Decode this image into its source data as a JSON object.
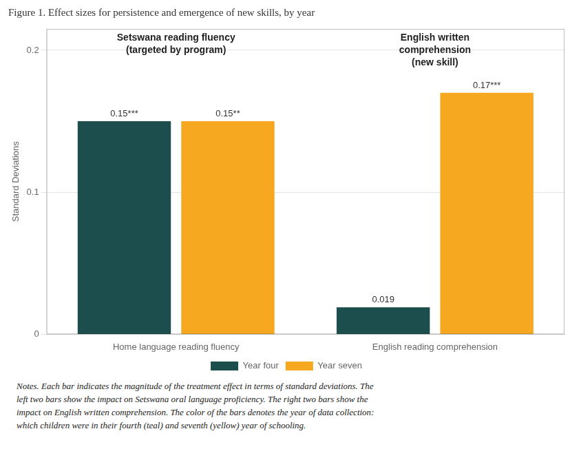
{
  "chart_data": {
    "type": "bar",
    "title": "Figure 1. Effect sizes for persistence and emergence of new skills, by year",
    "categories": [
      "Home language reading fluency",
      "English reading comprehension"
    ],
    "series": [
      {
        "name": "Year four",
        "color": "#1d4e4e",
        "values": [
          0.15,
          0.019
        ],
        "value_labels": [
          "0.15***",
          "0.019"
        ]
      },
      {
        "name": "Year seven",
        "color": "#f5a820",
        "values": [
          0.15,
          0.17
        ],
        "value_labels": [
          "0.15**",
          "0.17***"
        ]
      }
    ],
    "ylabel": "Standard Deviations",
    "ylim": [
      0,
      0.215
    ],
    "yticks": [
      0,
      0.1,
      0.2
    ],
    "grid": true,
    "legend": "bottom",
    "data_labels": true,
    "annotations": [
      {
        "text": "Setswana reading fluency\n(targeted by program)",
        "category": "Home language reading fluency"
      },
      {
        "text": "English written\ncomprehension\n(new skill)",
        "category": "English reading comprehension"
      }
    ],
    "notes": "Notes.  Each bar indicates the magnitude of the treatment effect in terms of standard deviations. The\nleft two bars show the impact on Setswana oral language proficiency. The right two bars show the\nimpact on English written comprehension. The color of the bars denotes the year of data collection:\nwhich children were in their fourth (teal) and seventh (yellow) year of schooling."
  }
}
